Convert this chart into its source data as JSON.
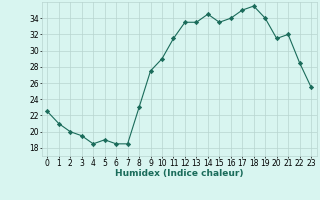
{
  "x": [
    0,
    1,
    2,
    3,
    4,
    5,
    6,
    7,
    8,
    9,
    10,
    11,
    12,
    13,
    14,
    15,
    16,
    17,
    18,
    19,
    20,
    21,
    22,
    23
  ],
  "y": [
    22.5,
    21.0,
    20.0,
    19.5,
    18.5,
    19.0,
    18.5,
    18.5,
    23.0,
    27.5,
    29.0,
    31.5,
    33.5,
    33.5,
    34.5,
    33.5,
    34.0,
    35.0,
    35.5,
    34.0,
    31.5,
    32.0,
    28.5,
    25.5
  ],
  "xlabel": "Humidex (Indice chaleur)",
  "xlim": [
    -0.5,
    23.5
  ],
  "ylim": [
    17.0,
    36.0
  ],
  "yticks": [
    18,
    20,
    22,
    24,
    26,
    28,
    30,
    32,
    34
  ],
  "xticks": [
    0,
    1,
    2,
    3,
    4,
    5,
    6,
    7,
    8,
    9,
    10,
    11,
    12,
    13,
    14,
    15,
    16,
    17,
    18,
    19,
    20,
    21,
    22,
    23
  ],
  "line_color": "#1a6b5a",
  "marker": "D",
  "marker_size": 2.2,
  "bg_color": "#d8f5f0",
  "grid_color": "#b8d4d0",
  "xlabel_fontsize": 6.5,
  "tick_fontsize": 5.5
}
